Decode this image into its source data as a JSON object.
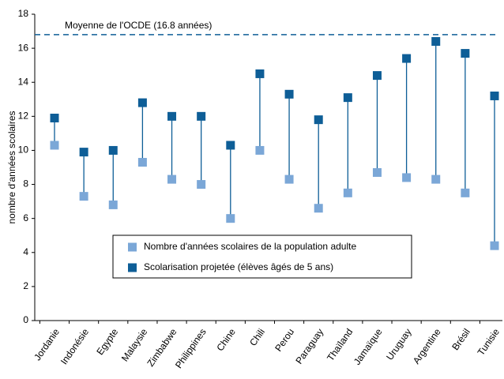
{
  "chart_data": {
    "type": "dot",
    "y_label": "nombre d'années scolaires",
    "categories": [
      "Jordanie",
      "Indonésie",
      "Egypte",
      "Malaysie",
      "Zimbabwe",
      "Philippines",
      "Chine",
      "Chili",
      "Perou",
      "Paraguay",
      "Thaïland",
      "Jamaïque",
      "Uruguay",
      "Argentine",
      "Brésil",
      "Tunisie"
    ],
    "series": [
      {
        "name": "Nombre d'années scolaires de la population adulte",
        "color": "#7ba7d7",
        "values": [
          10.3,
          7.3,
          6.8,
          9.3,
          8.3,
          8.0,
          6.0,
          10.0,
          8.3,
          6.6,
          7.5,
          8.7,
          8.4,
          8.3,
          7.5,
          4.4
        ]
      },
      {
        "name": "Scolarisation projetée (élèves âgés de 5 ans)",
        "color": "#0e5e97",
        "values": [
          11.9,
          9.9,
          10.0,
          12.8,
          12.0,
          12.0,
          10.3,
          14.5,
          13.3,
          11.8,
          13.1,
          14.4,
          15.4,
          16.4,
          15.7,
          13.2
        ]
      }
    ],
    "reference_line": {
      "value": 16.8,
      "label": "Moyenne de l'OCDE (16.8 années)",
      "color": "#0e5e97"
    },
    "ylim": [
      0,
      18
    ],
    "yticks": [
      0,
      2,
      4,
      6,
      8,
      10,
      12,
      14,
      16,
      18
    ]
  }
}
